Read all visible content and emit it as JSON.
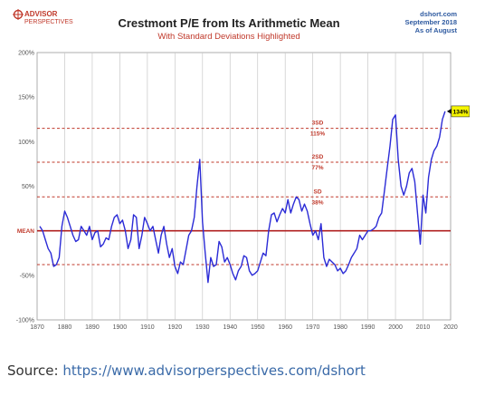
{
  "logo": {
    "line1": "ADVISOR",
    "line2": "PERSPECTIVES"
  },
  "source_corner": {
    "line1": "dshort.com",
    "line2": "September 2018",
    "line3": "As of August"
  },
  "source_footer": {
    "label": "Source:",
    "url": "https://www.advisorperspectives.com/dshort"
  },
  "colors": {
    "series": "#2b2bd6",
    "reference": "#c0392b",
    "mean_line": "#b02020",
    "callout_fill": "#f5f500",
    "grid": "#c8c8c8"
  },
  "chart_data": {
    "type": "line",
    "title": "Crestmont P/E from Its Arithmetic Mean",
    "subtitle": "With Standard Deviations Highlighted",
    "xlim": [
      1870,
      2020
    ],
    "ylim": [
      -100,
      200
    ],
    "x_ticks": [
      1870,
      1880,
      1890,
      1900,
      1910,
      1920,
      1930,
      1940,
      1950,
      1960,
      1970,
      1980,
      1990,
      2000,
      2010,
      2020
    ],
    "y_ticks": [
      -100,
      -50,
      0,
      50,
      100,
      150,
      200
    ],
    "y_tick_labels": [
      "-100%",
      "-50%",
      "",
      "50%",
      "100%",
      "150%",
      "200%"
    ],
    "grid": "vertical",
    "reference_lines": [
      {
        "value": 115,
        "label_top": "3SD",
        "label_bottom": "115%",
        "style": "dashed"
      },
      {
        "value": 77,
        "label_top": "2SD",
        "label_bottom": "77%",
        "style": "dashed"
      },
      {
        "value": 38,
        "label_top": "SD",
        "label_bottom": "38%",
        "style": "dashed"
      },
      {
        "value": 0,
        "label": "MEAN",
        "style": "solid"
      },
      {
        "value": -38,
        "style": "dashed"
      }
    ],
    "callout": {
      "x": 2018,
      "y": 134,
      "label": "134%"
    },
    "series": [
      {
        "x": [
          1871,
          1872,
          1873,
          1874,
          1875,
          1876,
          1877,
          1878,
          1879,
          1880,
          1881,
          1882,
          1883,
          1884,
          1885,
          1886,
          1887,
          1888,
          1889,
          1890,
          1891,
          1892,
          1893,
          1894,
          1895,
          1896,
          1897,
          1898,
          1899,
          1900,
          1901,
          1902,
          1903,
          1904,
          1905,
          1906,
          1907,
          1908,
          1909,
          1910,
          1911,
          1912,
          1913,
          1914,
          1915,
          1916,
          1917,
          1918,
          1919,
          1920,
          1921,
          1922,
          1923,
          1924,
          1925,
          1926,
          1927,
          1928,
          1929,
          1930,
          1931,
          1932,
          1933,
          1934,
          1935,
          1936,
          1937,
          1938,
          1939,
          1940,
          1941,
          1942,
          1943,
          1944,
          1945,
          1946,
          1947,
          1948,
          1949,
          1950,
          1951,
          1952,
          1953,
          1954,
          1955,
          1956,
          1957,
          1958,
          1959,
          1960,
          1961,
          1962,
          1963,
          1964,
          1965,
          1966,
          1967,
          1968,
          1969,
          1970,
          1971,
          1972,
          1973,
          1974,
          1975,
          1976,
          1977,
          1978,
          1979,
          1980,
          1981,
          1982,
          1983,
          1984,
          1985,
          1986,
          1987,
          1988,
          1989,
          1990,
          1991,
          1992,
          1993,
          1994,
          1995,
          1996,
          1997,
          1998,
          1999,
          2000,
          2001,
          2002,
          2003,
          2004,
          2005,
          2006,
          2007,
          2008,
          2009,
          2010,
          2011,
          2012,
          2013,
          2014,
          2015,
          2016,
          2017,
          2018
        ],
        "y": [
          5,
          0,
          -10,
          -20,
          -25,
          -40,
          -38,
          -30,
          5,
          22,
          15,
          5,
          -5,
          -12,
          -10,
          5,
          0,
          -5,
          5,
          -10,
          -2,
          0,
          -18,
          -15,
          -8,
          -10,
          5,
          15,
          18,
          8,
          12,
          0,
          -20,
          -10,
          18,
          15,
          -20,
          -5,
          15,
          8,
          0,
          5,
          -10,
          -25,
          -5,
          5,
          -15,
          -30,
          -20,
          -40,
          -48,
          -35,
          -38,
          -22,
          -5,
          0,
          15,
          50,
          80,
          10,
          -25,
          -58,
          -30,
          -40,
          -38,
          -12,
          -18,
          -35,
          -30,
          -38,
          -48,
          -55,
          -45,
          -40,
          -28,
          -30,
          -45,
          -50,
          -48,
          -45,
          -35,
          -25,
          -28,
          0,
          18,
          20,
          10,
          18,
          25,
          20,
          35,
          20,
          30,
          38,
          35,
          22,
          30,
          22,
          8,
          -5,
          0,
          -10,
          8,
          -30,
          -40,
          -32,
          -35,
          -38,
          -45,
          -42,
          -48,
          -45,
          -38,
          -30,
          -25,
          -20,
          -5,
          -10,
          -5,
          0,
          0,
          2,
          5,
          15,
          20,
          45,
          70,
          95,
          125,
          130,
          80,
          50,
          40,
          50,
          65,
          70,
          55,
          20,
          -15,
          40,
          20,
          60,
          80,
          90,
          95,
          105,
          125,
          134
        ]
      }
    ]
  }
}
